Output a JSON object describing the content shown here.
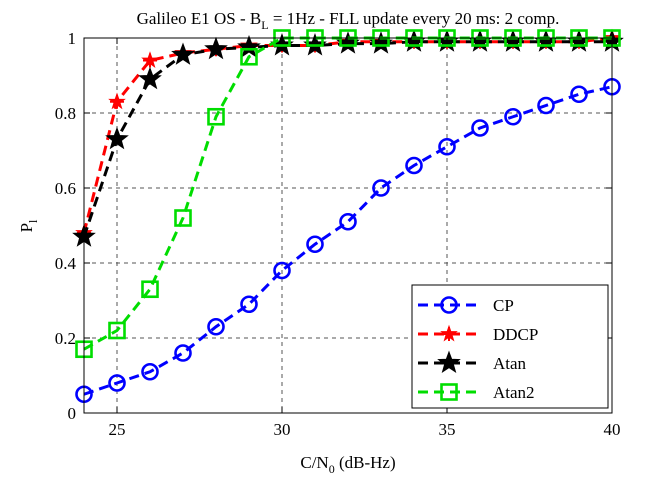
{
  "chart_data": {
    "type": "line",
    "title": {
      "main": "Galileo E1 OS - B",
      "sub": "L",
      "rest": " = 1Hz - FLL update every 20 ms: 2 comp."
    },
    "xlabel": {
      "main": "C/N",
      "sub": "0",
      "rest": " (dB-Hz)"
    },
    "ylabel": {
      "main": "P",
      "sub": "l"
    },
    "xlim": [
      24,
      40
    ],
    "ylim": [
      0,
      1
    ],
    "xticks": [
      25,
      30,
      35,
      40
    ],
    "yticks": [
      0,
      0.2,
      0.4,
      0.6,
      0.8,
      1
    ],
    "xtick_labels": [
      "25",
      "30",
      "35",
      "40"
    ],
    "ytick_labels": [
      "0",
      "0.2",
      "0.4",
      "0.6",
      "0.8",
      "1"
    ],
    "grid": true,
    "legend_position": "bottom-right",
    "x": [
      24,
      25,
      26,
      27,
      28,
      29,
      30,
      31,
      32,
      33,
      34,
      35,
      36,
      37,
      38,
      39,
      40
    ],
    "series": [
      {
        "name": "CP",
        "color": "#0000ff",
        "marker": "circle",
        "values": [
          0.05,
          0.08,
          0.11,
          0.16,
          0.23,
          0.29,
          0.38,
          0.45,
          0.51,
          0.6,
          0.66,
          0.71,
          0.76,
          0.79,
          0.82,
          0.85,
          0.87
        ]
      },
      {
        "name": "DDCP",
        "color": "#ff0000",
        "marker": "plus-star",
        "values": [
          0.48,
          0.83,
          0.94,
          0.96,
          0.97,
          0.98,
          0.98,
          0.98,
          0.99,
          0.99,
          0.99,
          0.99,
          0.99,
          0.99,
          0.99,
          0.99,
          1.0
        ]
      },
      {
        "name": "Atan",
        "color": "#000000",
        "marker": "pentagram",
        "values": [
          0.47,
          0.73,
          0.89,
          0.955,
          0.97,
          0.975,
          0.98,
          0.98,
          0.985,
          0.985,
          0.99,
          0.99,
          0.99,
          0.99,
          0.99,
          0.99,
          0.99
        ]
      },
      {
        "name": "Atan2",
        "color": "#00dd00",
        "marker": "square",
        "values": [
          0.17,
          0.22,
          0.33,
          0.52,
          0.79,
          0.95,
          1.0,
          1.0,
          1.0,
          1.0,
          1.0,
          1.0,
          1.0,
          1.0,
          1.0,
          1.0,
          1.0
        ]
      }
    ]
  }
}
